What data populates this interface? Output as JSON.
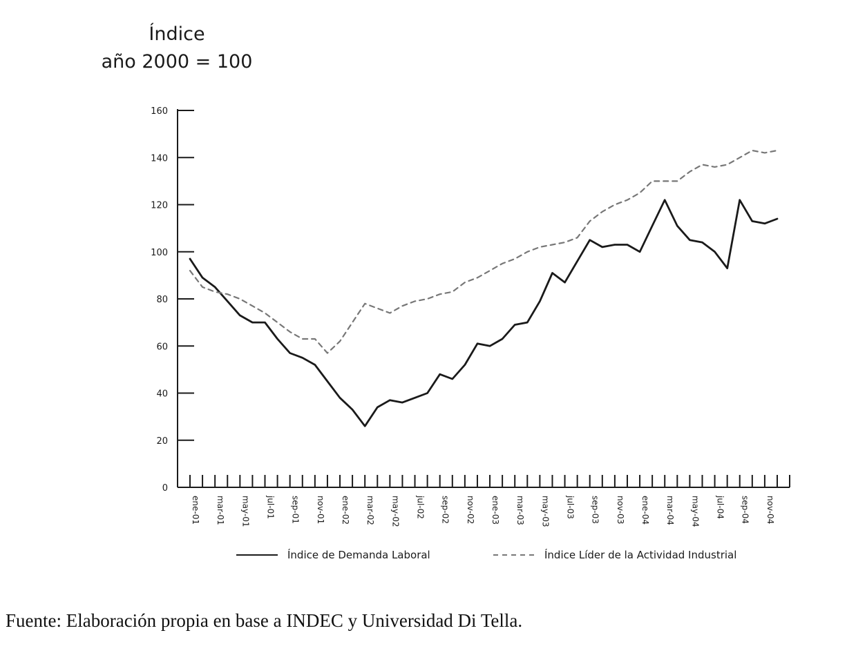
{
  "chart_data": {
    "type": "line",
    "ylabel_lines": [
      "Índice",
      "año 2000 = 100"
    ],
    "xlabel": "",
    "ylim": [
      0,
      160
    ],
    "yticks": [
      0,
      20,
      40,
      60,
      80,
      100,
      120,
      140,
      160
    ],
    "grid": false,
    "legend_position": "bottom",
    "x": [
      "ene-01",
      "feb-01",
      "mar-01",
      "abr-01",
      "may-01",
      "jun-01",
      "jul-01",
      "ago-01",
      "sep-01",
      "oct-01",
      "nov-01",
      "dic-01",
      "ene-02",
      "feb-02",
      "mar-02",
      "abr-02",
      "may-02",
      "jun-02",
      "jul-02",
      "ago-02",
      "sep-02",
      "oct-02",
      "nov-02",
      "dic-02",
      "ene-03",
      "feb-03",
      "mar-03",
      "abr-03",
      "may-03",
      "jun-03",
      "jul-03",
      "ago-03",
      "sep-03",
      "oct-03",
      "nov-03",
      "dic-03",
      "ene-04",
      "feb-04",
      "mar-04",
      "abr-04",
      "may-04",
      "jun-04",
      "jul-04",
      "ago-04",
      "sep-04",
      "oct-04",
      "nov-04",
      "dic-04"
    ],
    "x_tick_labels": [
      "ene-01",
      "mar-01",
      "may-01",
      "jul-01",
      "sep-01",
      "nov-01",
      "ene-02",
      "mar-02",
      "may-02",
      "jul-02",
      "sep-02",
      "nov-02",
      "ene-03",
      "mar-03",
      "may-03",
      "jul-03",
      "sep-03",
      "nov-03",
      "ene-04",
      "mar-04",
      "may-04",
      "jul-04",
      "sep-04",
      "nov-04"
    ],
    "series": [
      {
        "name": "Índice de Demanda Laboral",
        "style": "solid",
        "color": "#1a1a1a",
        "values": [
          97,
          89,
          85,
          79,
          73,
          70,
          70,
          63,
          57,
          55,
          52,
          45,
          38,
          33,
          26,
          34,
          37,
          36,
          38,
          40,
          48,
          46,
          52,
          61,
          60,
          63,
          69,
          70,
          79,
          91,
          87,
          96,
          105,
          102,
          103,
          103,
          100,
          111,
          122,
          111,
          105,
          104,
          100,
          93,
          122,
          113,
          112,
          114
        ]
      },
      {
        "name": "Índice Líder de la Actividad Industrial",
        "style": "dashed",
        "color": "#777777",
        "values": [
          92,
          85,
          83,
          82,
          80,
          77,
          74,
          70,
          66,
          63,
          63,
          57,
          62,
          70,
          78,
          76,
          74,
          77,
          79,
          80,
          82,
          83,
          87,
          89,
          92,
          95,
          97,
          100,
          102,
          103,
          104,
          106,
          113,
          117,
          120,
          122,
          125,
          130,
          130,
          130,
          134,
          137,
          136,
          137,
          140,
          143,
          142,
          143
        ]
      }
    ]
  },
  "source_note": "Fuente: Elaboración propia en base a INDEC y Universidad Di Tella."
}
